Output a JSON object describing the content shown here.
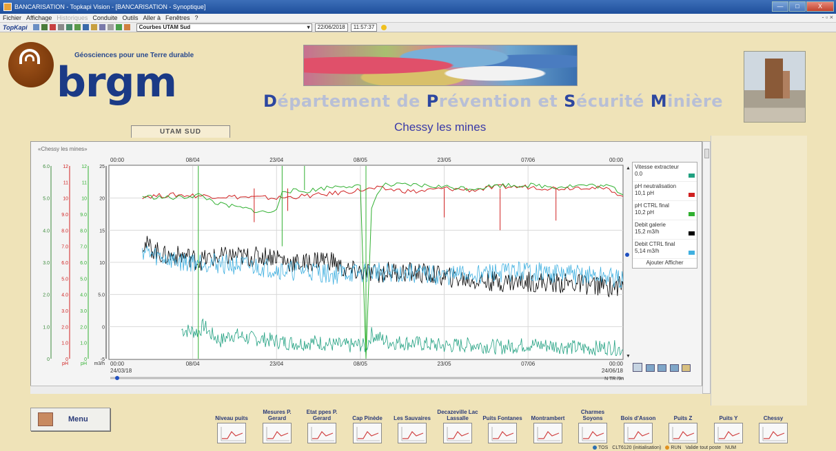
{
  "window": {
    "title": "BANCARISATION - Topkapi Vision - [BANCARISATION - Synoptique]",
    "buttons": [
      "—",
      "□",
      "X"
    ]
  },
  "menubar": {
    "items": [
      "Fichier",
      "Affichage",
      "Historiques",
      "Conduite",
      "Outils",
      "Aller à",
      "Fenêtres",
      "?"
    ],
    "disabled": [
      "Historiques"
    ],
    "mdi": "- ▫ ×"
  },
  "toolbar": {
    "brand": "TopKapi",
    "curve_select": "Courbes UTAM Sud",
    "date": "22/06/2018",
    "time": "11:57:37"
  },
  "header": {
    "tagline": "Géosciences pour une Terre durable",
    "logo_word": "brgm",
    "dept": [
      {
        "cap": "D",
        "rest": "épartement de "
      },
      {
        "cap": "P",
        "rest": "révention et "
      },
      {
        "cap": "S",
        "rest": "écurité "
      },
      {
        "cap": "M",
        "rest": "inière"
      }
    ],
    "site_name": "Chessy les mines",
    "tab_label": "UTAM SUD"
  },
  "chart_panel": {
    "title": "«Chessy les mines»"
  },
  "chart_data": {
    "type": "line",
    "title": "",
    "x_ticks_top": [
      "00:00",
      "08/04",
      "23/04",
      "08/05",
      "23/05",
      "07/06",
      "00:00"
    ],
    "x_ticks_bottom": [
      "00:00",
      "08/04",
      "23/04",
      "08/05",
      "23/05",
      "07/06",
      "00:00"
    ],
    "x_start": "24/03/18",
    "x_end": "24/06/18",
    "x_tick_days": [
      0,
      15,
      30,
      45,
      60,
      75,
      92
    ],
    "x_days_total": 92,
    "axes": [
      {
        "label": "",
        "color": "#3a8a3a",
        "ticks": [
          "6.0",
          "5.0",
          "4.0",
          "3.0",
          "2.0",
          "1.0",
          "0"
        ],
        "range": [
          0,
          6
        ]
      },
      {
        "label": "pH",
        "color": "#d02020",
        "ticks": [
          "12",
          "11",
          "10",
          "9.0",
          "8.0",
          "7.0",
          "6.0",
          "5.0",
          "4.0",
          "3.0",
          "2.0",
          "1.0",
          "0"
        ],
        "range": [
          0,
          12
        ]
      },
      {
        "label": "pH",
        "color": "#30b030",
        "ticks": [
          "12",
          "11",
          "10",
          "9.0",
          "8.0",
          "7.0",
          "6.0",
          "5.0",
          "4.0",
          "3.0",
          "2.0",
          "1.0",
          "0"
        ],
        "range": [
          0,
          12
        ]
      },
      {
        "label": "m3/h",
        "color": "#333333",
        "ticks": [
          "25",
          "20",
          "15",
          "10",
          "5.0",
          "0",
          "-5"
        ],
        "range": [
          -5,
          25
        ]
      }
    ],
    "grid": true,
    "legend_position": "right",
    "series": [
      {
        "name": "Vitesse extracteur",
        "value": "0.0",
        "color": "#20a080",
        "points": [
          [
            13,
            -0.5
          ],
          [
            16,
            -0.8
          ],
          [
            17,
            0.2
          ],
          [
            18,
            -1
          ],
          [
            20,
            -2.2
          ],
          [
            22,
            -1.2
          ],
          [
            25,
            -1.8
          ],
          [
            28,
            -2
          ],
          [
            31,
            -2.4
          ],
          [
            34,
            -2.6
          ],
          [
            37,
            -2.4
          ],
          [
            40,
            -2.8
          ],
          [
            43,
            -3
          ],
          [
            45,
            -2.8
          ],
          [
            46,
            -3.2
          ],
          [
            47,
            -1.2
          ],
          [
            50,
            -2.4
          ],
          [
            55,
            -2.6
          ],
          [
            60,
            -3
          ],
          [
            65,
            -2.8
          ],
          [
            70,
            -3.2
          ],
          [
            75,
            -2.8
          ],
          [
            80,
            -3
          ],
          [
            85,
            -3.4
          ],
          [
            90,
            -3.2
          ],
          [
            92,
            -3.6
          ]
        ]
      },
      {
        "name": "pH neutralisation",
        "value": "10,1 pH",
        "color": "#d02020",
        "points": [
          [
            6,
            10.1
          ],
          [
            12,
            10.2
          ],
          [
            20,
            10.1
          ],
          [
            30,
            10.0
          ],
          [
            38,
            10.2
          ],
          [
            45,
            10.5
          ],
          [
            48,
            10.6
          ],
          [
            55,
            10.4
          ],
          [
            60,
            10.6
          ],
          [
            65,
            10.5
          ],
          [
            70,
            10.7
          ],
          [
            75,
            10.7
          ],
          [
            80,
            10.6
          ],
          [
            85,
            10.7
          ],
          [
            90,
            10.5
          ],
          [
            92,
            10.1
          ]
        ]
      },
      {
        "name": "pH CTRL final",
        "value": "10,2 pH",
        "color": "#30b030",
        "points": [
          [
            6,
            10.1
          ],
          [
            12,
            10.0
          ],
          [
            16,
            10.2
          ],
          [
            18,
            9.9
          ],
          [
            20,
            9.6
          ],
          [
            25,
            9.3
          ],
          [
            28,
            9.1
          ],
          [
            30,
            9.2
          ],
          [
            31,
            10.5
          ],
          [
            35,
            10.4
          ],
          [
            38,
            10.6
          ],
          [
            42,
            10.8
          ],
          [
            45,
            10.7
          ],
          [
            46,
            0
          ],
          [
            47,
            9.5
          ],
          [
            49,
            10.8
          ],
          [
            55,
            10.8
          ],
          [
            60,
            10.7
          ],
          [
            65,
            10.6
          ],
          [
            70,
            10.8
          ],
          [
            75,
            10.8
          ],
          [
            80,
            10.7
          ],
          [
            85,
            10.8
          ],
          [
            90,
            10.7
          ],
          [
            92,
            10.2
          ]
        ]
      },
      {
        "name": "Debit galerie",
        "value": "15,2 m3/h",
        "color": "#000000",
        "points": [
          [
            6,
            13
          ],
          [
            8,
            12
          ],
          [
            10,
            11
          ],
          [
            12,
            11
          ],
          [
            14,
            11
          ],
          [
            16,
            10.2
          ],
          [
            18,
            10.6
          ],
          [
            20,
            10.8
          ],
          [
            22,
            11
          ],
          [
            25,
            10.8
          ],
          [
            28,
            11
          ],
          [
            30,
            11
          ],
          [
            32,
            10
          ],
          [
            35,
            9.8
          ],
          [
            38,
            10.6
          ],
          [
            40,
            10.2
          ],
          [
            42,
            8.8
          ],
          [
            45,
            8.5
          ],
          [
            48,
            8.2
          ],
          [
            50,
            8.6
          ],
          [
            55,
            8.4
          ],
          [
            60,
            7.8
          ],
          [
            65,
            7.2
          ],
          [
            70,
            7.0
          ],
          [
            75,
            7.0
          ],
          [
            80,
            6.8
          ],
          [
            85,
            6.6
          ],
          [
            90,
            6.2
          ],
          [
            92,
            6.5
          ]
        ]
      },
      {
        "name": "Debit CTRL final",
        "value": "5,14 m3/h",
        "color": "#40b0e0",
        "points": [
          [
            6,
            12
          ],
          [
            8,
            11
          ],
          [
            10,
            10.6
          ],
          [
            12,
            10.2
          ],
          [
            14,
            10.0
          ],
          [
            16,
            10.2
          ],
          [
            18,
            10
          ],
          [
            20,
            9.8
          ],
          [
            22,
            9.6
          ],
          [
            25,
            9.4
          ],
          [
            28,
            9.2
          ],
          [
            30,
            9.0
          ],
          [
            32,
            8.6
          ],
          [
            35,
            8.8
          ],
          [
            38,
            8.4
          ],
          [
            40,
            8.0
          ],
          [
            42,
            8.4
          ],
          [
            45,
            8.2
          ],
          [
            48,
            8.6
          ],
          [
            50,
            8.4
          ],
          [
            55,
            8.2
          ],
          [
            60,
            7.8
          ],
          [
            65,
            8.2
          ],
          [
            70,
            8.4
          ],
          [
            75,
            8.6
          ],
          [
            80,
            8.2
          ],
          [
            85,
            8.0
          ],
          [
            90,
            7.6
          ],
          [
            92,
            7.0
          ]
        ]
      }
    ]
  },
  "legend": {
    "button_label": "Ajouter Afficher",
    "scroll_label": "N TR /9n"
  },
  "bottom": {
    "menu_label": "Menu",
    "nav": [
      {
        "label": "Niveau puits"
      },
      {
        "label": "Mesures P. Gerard"
      },
      {
        "label": "Etat ppes P. Gerard"
      },
      {
        "label": "Cap Pinède"
      },
      {
        "label": "Les Sauvaires"
      },
      {
        "label": "Decazeville Lac Lassalle"
      },
      {
        "label": "Puits Fontanes"
      },
      {
        "label": "Montrambert"
      },
      {
        "label": "Charmes Soyons"
      },
      {
        "label": "Bois d'Asson"
      },
      {
        "label": "Puits Z"
      },
      {
        "label": "Puits Y"
      },
      {
        "label": "Chessy"
      }
    ]
  },
  "statusbar": {
    "tos": "TOS",
    "init": "CLT6120 (initialisation)",
    "run": "RUN",
    "valide": "Valide tout poste",
    "num": "NUM"
  }
}
